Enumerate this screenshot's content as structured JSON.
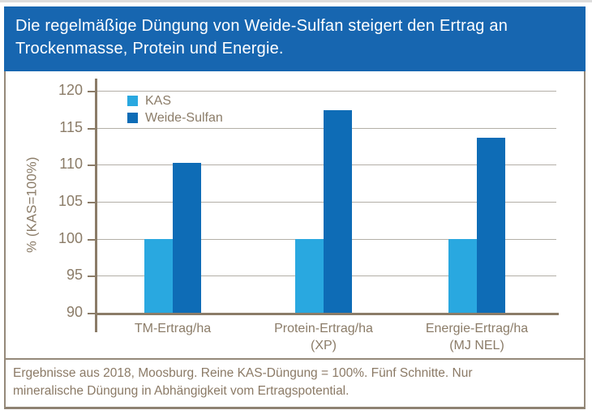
{
  "header": {
    "title": "Die regelmäßige Düngung von Weide-Sulfan steigert den Ertrag an\nTrockenmasse, Protein und Energie."
  },
  "chart_data": {
    "type": "bar",
    "title": "",
    "categories": [
      "TM-Ertrag/ha",
      "Protein-Ertrag/ha\n(XP)",
      "Energie-Ertrag/ha\n(MJ NEL)"
    ],
    "series": [
      {
        "name": "KAS",
        "color": "#29a8e0",
        "values": [
          100,
          100,
          100
        ]
      },
      {
        "name": "Weide-Sulfan",
        "color": "#0e6cb6",
        "values": [
          110.3,
          117.4,
          113.7
        ]
      }
    ],
    "xlabel": "",
    "ylabel": "% (KAS=100%)",
    "ylim": [
      90,
      120
    ],
    "yticks": [
      90,
      95,
      100,
      105,
      110,
      115,
      120
    ],
    "grid": true,
    "legend_position": "top-left"
  },
  "footer": {
    "text": "Ergebnisse aus 2018, Moosburg. Reine KAS-Düngung = 100%. Fünf Schnitte. Nur\nmineralische Düngung in Abhängigkeit vom Ertragspotential."
  },
  "colors": {
    "header_background": "#1766b0",
    "header_text": "#ffffff",
    "kas_bar": "#29a8e0",
    "weide_sulfan_bar": "#0e6cb6",
    "axis": "#8b7c68",
    "gridline": "#b3afa7",
    "box_border": "#95897a",
    "footer_text": "#8b7a66"
  }
}
